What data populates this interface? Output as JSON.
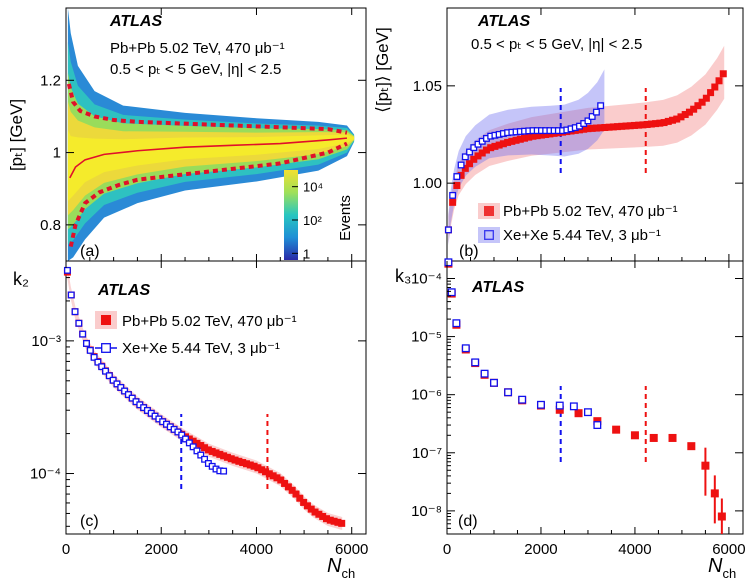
{
  "chart_data": [
    {
      "panel_label": "(a)",
      "type": "heatmap",
      "atlas_label": "ATLAS",
      "annotations": [
        "Pb+Pb 5.02 TeV, 470 μb⁻¹",
        "0.5 < pₜ < 5 GeV, |η| < 2.5"
      ],
      "xlabel": "",
      "ylabel": "[pₜ] [GeV]",
      "xlim": [
        0,
        6300
      ],
      "ylim": [
        0.7,
        1.4
      ],
      "xticks": [
        0,
        2000,
        4000,
        6000
      ],
      "yticks": [
        0.8,
        1,
        1.2
      ],
      "ytick_labels": [
        "0.8",
        "1",
        "1.2"
      ],
      "colorbar": {
        "label": "Events",
        "ticks": [
          "1",
          "10²",
          "10⁴"
        ],
        "tick_log_values": [
          0,
          2,
          4
        ],
        "log_range": [
          -0.4,
          5.0
        ]
      },
      "mean_curve": {
        "x": [
          80,
          200,
          400,
          800,
          1500,
          2500,
          3500,
          4500,
          5500,
          5900
        ],
        "y": [
          0.93,
          0.96,
          0.98,
          0.995,
          1.005,
          1.015,
          1.02,
          1.025,
          1.035,
          1.04
        ]
      },
      "band_upper": {
        "x": [
          60,
          150,
          300,
          600,
          1000,
          1500,
          2500,
          3500,
          4500,
          5500,
          5900
        ],
        "y": [
          1.19,
          1.14,
          1.115,
          1.1,
          1.09,
          1.085,
          1.08,
          1.075,
          1.07,
          1.065,
          1.055
        ]
      },
      "band_lower": {
        "x": [
          100,
          200,
          400,
          700,
          1100,
          1500,
          2500,
          3500,
          4500,
          5500,
          5900
        ],
        "y": [
          0.74,
          0.8,
          0.86,
          0.89,
          0.91,
          0.925,
          0.94,
          0.955,
          0.97,
          1.0,
          1.025
        ]
      }
    },
    {
      "panel_label": "(b)",
      "type": "scatter",
      "atlas_label": "ATLAS",
      "annotations": [
        "0.5 < pₜ < 5 GeV, |η| < 2.5"
      ],
      "xlabel": "",
      "ylabel": "⟨[pₜ]⟩ [GeV]",
      "xlim": [
        0,
        6300
      ],
      "ylim": [
        0.96,
        1.09
      ],
      "xticks": [
        0,
        2000,
        4000,
        6000
      ],
      "yticks": [
        1.0,
        1.05
      ],
      "ytick_labels": [
        "1.00",
        "1.05"
      ],
      "vlines": [
        2420,
        4230
      ],
      "legend_position": "bottom-right",
      "series": [
        {
          "name": "Pb+Pb 5.02 TeV, 470 μb⁻¹",
          "marker": "filled-square",
          "color": "#ee1111",
          "x": [
            30,
            80,
            150,
            250,
            400,
            600,
            900,
            1300,
            1800,
            2400,
            3000,
            3600,
            4200,
            4600,
            4900,
            5200,
            5500,
            5750,
            5900
          ],
          "y": [
            0.976,
            0.985,
            0.994,
            1.002,
            1.008,
            1.013,
            1.018,
            1.021,
            1.024,
            1.026,
            1.028,
            1.029,
            1.03,
            1.031,
            1.033,
            1.037,
            1.043,
            1.051,
            1.057
          ]
        },
        {
          "name": "Xe+Xe 5.44 TeV, 3 μb⁻¹",
          "marker": "open-square",
          "color": "#1111ee",
          "x": [
            30,
            80,
            150,
            250,
            400,
            600,
            900,
            1300,
            1800,
            2200,
            2500,
            2800,
            3000,
            3200,
            3350
          ],
          "y": [
            0.976,
            0.988,
            0.998,
            1.007,
            1.014,
            1.019,
            1.024,
            1.026,
            1.027,
            1.027,
            1.027,
            1.029,
            1.032,
            1.037,
            1.043
          ]
        }
      ]
    },
    {
      "panel_label": "(c)",
      "type": "scatter",
      "atlas_label": "ATLAS",
      "xlabel": "N_ch",
      "ylabel": "k₂",
      "yscale": "log",
      "xlim": [
        0,
        6300
      ],
      "ylim": [
        3.5e-05,
        0.004
      ],
      "xticks": [
        0,
        2000,
        4000,
        6000
      ],
      "xtick_labels": [
        "0",
        "2000",
        "4000",
        "6000"
      ],
      "yticks": [
        0.0001,
        0.001
      ],
      "ytick_labels": [
        "10⁻⁴",
        "10⁻³"
      ],
      "vlines": [
        2420,
        4230
      ],
      "legend_position": "top-right",
      "series": [
        {
          "name": "Pb+Pb 5.02 TeV, 470 μb⁻¹",
          "marker": "filled-square",
          "color": "#ee1111",
          "x": [
            30,
            100,
            200,
            400,
            600,
            1000,
            1500,
            2000,
            2500,
            3000,
            3500,
            4000,
            4500,
            4800,
            5000,
            5200,
            5500,
            5800
          ],
          "y": [
            0.0033,
            0.0023,
            0.0016,
            0.001,
            0.00075,
            0.0005,
            0.00034,
            0.00025,
            0.00019,
            0.00015,
            0.000128,
            0.000112,
            9e-05,
            7.2e-05,
            6e-05,
            5.2e-05,
            4.5e-05,
            4.2e-05
          ]
        },
        {
          "name": "Xe+Xe 5.44 TeV, 3 μb⁻¹",
          "marker": "open-square",
          "color": "#1111ee",
          "x": [
            30,
            100,
            200,
            400,
            600,
            1000,
            1500,
            2000,
            2400,
            2700,
            3000,
            3200,
            3350
          ],
          "y": [
            0.0034,
            0.0023,
            0.0016,
            0.001,
            0.00074,
            0.0005,
            0.00034,
            0.00025,
            0.0002,
            0.000155,
            0.000118,
            0.000105,
            0.000104
          ]
        }
      ]
    },
    {
      "panel_label": "(d)",
      "type": "scatter",
      "atlas_label": "ATLAS",
      "xlabel": "N_ch",
      "ylabel": "k₃",
      "yscale": "log",
      "xlim": [
        0,
        6300
      ],
      "ylim": [
        4e-09,
        0.0002
      ],
      "xticks": [
        0,
        2000,
        4000,
        6000
      ],
      "xtick_labels": [
        "0",
        "2000",
        "4000",
        "6000"
      ],
      "yticks": [
        1e-08,
        1e-07,
        1e-06,
        1e-05,
        0.0001
      ],
      "ytick_labels": [
        "10⁻⁸",
        "10⁻⁷",
        "10⁻⁶",
        "10⁻⁵",
        "10⁻⁴"
      ],
      "vlines": [
        2420,
        4230
      ],
      "series": [
        {
          "name": "Pb+Pb",
          "marker": "filled-square",
          "color": "#ee1111",
          "x": [
            30,
            100,
            200,
            400,
            600,
            800,
            1000,
            1300,
            1600,
            2000,
            2400,
            2800,
            3200,
            3600,
            4000,
            4400,
            4800,
            5200,
            5500,
            5700,
            5850
          ],
          "y": [
            0.00018,
            5.5e-05,
            1.6e-05,
            6e-06,
            3.5e-06,
            2.2e-06,
            1.6e-06,
            1.1e-06,
            8e-07,
            6.5e-07,
            5.5e-07,
            4.8e-07,
            3.5e-07,
            2.5e-07,
            2e-07,
            1.8e-07,
            1.8e-07,
            1.3e-07,
            6e-08,
            2e-08,
            8e-09
          ]
        },
        {
          "name": "Xe+Xe",
          "marker": "open-square",
          "color": "#1111ee",
          "x": [
            30,
            100,
            200,
            400,
            600,
            800,
            1000,
            1300,
            1600,
            2000,
            2400,
            2700,
            3000,
            3200
          ],
          "y": [
            0.00019,
            5.8e-05,
            1.7e-05,
            6.3e-06,
            3.6e-06,
            2.3e-06,
            1.6e-06,
            1.1e-06,
            8.2e-07,
            6.7e-07,
            6.5e-07,
            6.3e-07,
            5e-07,
            3e-07
          ]
        }
      ]
    }
  ]
}
